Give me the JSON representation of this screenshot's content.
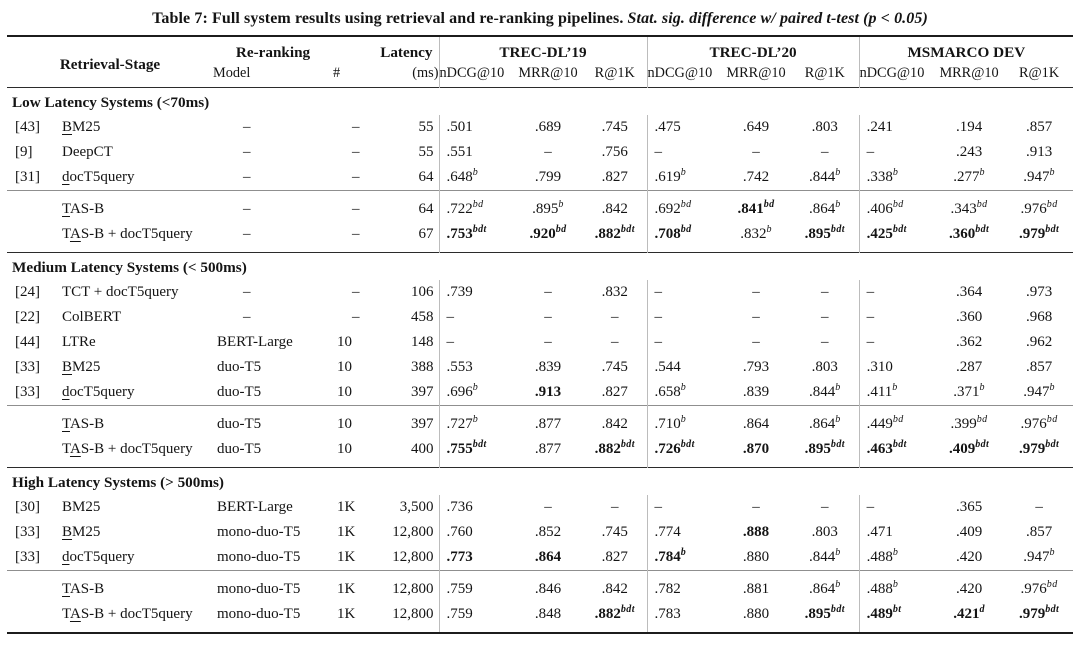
{
  "title": {
    "prefix": "Table 7: Full system results using retrieval and re-ranking pipelines. ",
    "emphasis": "Stat. sig. difference w/ paired t-test (p < 0.05)"
  },
  "colors": {
    "background": "#ffffff",
    "text": "#141414",
    "rule_dark": "#1c1c1c",
    "rule_mid": "#8f8f8f",
    "divider_gray": "#bcbcbc"
  },
  "header": {
    "retrieval_stage": "Retrieval-Stage",
    "reranking": "Re-ranking",
    "model": "Model",
    "count": "#",
    "latency": "Latency",
    "latency_unit": "(ms)",
    "groups": [
      {
        "label": "TREC-DL’19",
        "metrics": [
          "nDCG@10",
          "MRR@10",
          "R@1K"
        ]
      },
      {
        "label": "TREC-DL’20",
        "metrics": [
          "nDCG@10",
          "MRR@10",
          "R@1K"
        ]
      },
      {
        "label": "MSMARCO DEV",
        "metrics": [
          "nDCG@10",
          "MRR@10",
          "R@1K"
        ]
      }
    ]
  },
  "value_format_note": "cell strings: leading * = bold, ^xyz = italic superscript letters, – = no result",
  "sections": [
    {
      "label": "Low Latency Systems (<70ms)",
      "rows": [
        {
          "ref": "[43]",
          "name": [
            "",
            "B",
            "M25"
          ],
          "model": "–",
          "n": "–",
          "lat": "55",
          "cells": [
            ".501",
            ".689",
            ".745",
            ".475",
            ".649",
            ".803",
            ".241",
            ".194",
            ".857"
          ]
        },
        {
          "ref": "[9]",
          "name": [
            "DeepCT",
            "",
            ""
          ],
          "model": "–",
          "n": "–",
          "lat": "55",
          "cells": [
            ".551",
            "–",
            ".756",
            "–",
            "–",
            "–",
            "–",
            ".243",
            ".913"
          ]
        },
        {
          "ref": "[31]",
          "name": [
            "",
            "d",
            "ocT5query"
          ],
          "model": "–",
          "n": "–",
          "lat": "64",
          "cells": [
            ".648^b",
            ".799",
            ".827",
            ".619^b",
            ".742",
            ".844^b",
            ".338^b",
            ".277^b",
            ".947^b"
          ]
        }
      ],
      "sub_rows": [
        {
          "ref": "",
          "name": [
            "",
            "T",
            "AS-B"
          ],
          "model": "–",
          "n": "–",
          "lat": "64",
          "cells": [
            ".722^bd",
            ".895^b",
            ".842",
            ".692^bd",
            "*.841^bd",
            ".864^b",
            ".406^bd",
            ".343^bd",
            ".976^bd"
          ]
        },
        {
          "ref": "",
          "name": [
            "T",
            "A",
            "S-B + docT5query"
          ],
          "model": "–",
          "n": "–",
          "lat": "67",
          "cells": [
            "*.753^bdt",
            "*.920^bd",
            "*.882^bdt",
            "*.708^bd",
            ".832^b",
            "*.895^bdt",
            "*.425^bdt",
            "*.360^bdt",
            "*.979^bdt"
          ]
        }
      ]
    },
    {
      "label": "Medium Latency Systems (< 500ms)",
      "rows": [
        {
          "ref": "[24]",
          "name": [
            "TCT + docT5query",
            "",
            ""
          ],
          "model": "–",
          "n": "–",
          "lat": "106",
          "cells": [
            ".739",
            "–",
            ".832",
            "–",
            "–",
            "–",
            "–",
            ".364",
            ".973"
          ]
        },
        {
          "ref": "[22]",
          "name": [
            "ColBERT",
            "",
            ""
          ],
          "model": "–",
          "n": "–",
          "lat": "458",
          "cells": [
            "–",
            "–",
            "–",
            "–",
            "–",
            "–",
            "–",
            ".360",
            ".968"
          ]
        },
        {
          "ref": "[44]",
          "name": [
            "LTRe",
            "",
            ""
          ],
          "model": "BERT-Large",
          "n": "10",
          "lat": "148",
          "cells": [
            "–",
            "–",
            "–",
            "–",
            "–",
            "–",
            "–",
            ".362",
            ".962"
          ]
        },
        {
          "ref": "[33]",
          "name": [
            "",
            "B",
            "M25"
          ],
          "model": "duo-T5",
          "n": "10",
          "lat": "388",
          "cells": [
            ".553",
            ".839",
            ".745",
            ".544",
            ".793",
            ".803",
            ".310",
            ".287",
            ".857"
          ]
        },
        {
          "ref": "[33]",
          "name": [
            "",
            "d",
            "ocT5query"
          ],
          "model": "duo-T5",
          "n": "10",
          "lat": "397",
          "cells": [
            ".696^b",
            "*.913",
            ".827",
            ".658^b",
            ".839",
            ".844^b",
            ".411^b",
            ".371^b",
            ".947^b"
          ]
        }
      ],
      "sub_rows": [
        {
          "ref": "",
          "name": [
            "",
            "T",
            "AS-B"
          ],
          "model": "duo-T5",
          "n": "10",
          "lat": "397",
          "cells": [
            ".727^b",
            ".877",
            ".842",
            ".710^b",
            ".864",
            ".864^b",
            ".449^bd",
            ".399^bd",
            ".976^bd"
          ]
        },
        {
          "ref": "",
          "name": [
            "T",
            "A",
            "S-B + docT5query"
          ],
          "model": "duo-T5",
          "n": "10",
          "lat": "400",
          "cells": [
            "*.755^bdt",
            ".877",
            "*.882^bdt",
            "*.726^bdt",
            "*.870",
            "*.895^bdt",
            "*.463^bdt",
            "*.409^bdt",
            "*.979^bdt"
          ]
        }
      ]
    },
    {
      "label": "High Latency Systems (> 500ms)",
      "rows": [
        {
          "ref": "[30]",
          "name": [
            "BM25",
            "",
            ""
          ],
          "model": "BERT-Large",
          "n": "1K",
          "lat": "3,500",
          "cells": [
            ".736",
            "–",
            "–",
            "–",
            "–",
            "–",
            "–",
            ".365",
            "–"
          ]
        },
        {
          "ref": "[33]",
          "name": [
            "",
            "B",
            "M25"
          ],
          "model": "mono-duo-T5",
          "n": "1K",
          "lat": "12,800",
          "cells": [
            ".760",
            ".852",
            ".745",
            ".774",
            "*.888",
            ".803",
            ".471",
            ".409",
            ".857"
          ]
        },
        {
          "ref": "[33]",
          "name": [
            "",
            "d",
            "ocT5query"
          ],
          "model": "mono-duo-T5",
          "n": "1K",
          "lat": "12,800",
          "cells": [
            "*.773",
            "*.864",
            ".827",
            "*.784^b",
            ".880",
            ".844^b",
            ".488^b",
            ".420",
            ".947^b"
          ]
        }
      ],
      "sub_rows": [
        {
          "ref": "",
          "name": [
            "",
            "T",
            "AS-B"
          ],
          "model": "mono-duo-T5",
          "n": "1K",
          "lat": "12,800",
          "cells": [
            ".759",
            ".846",
            ".842",
            ".782",
            ".881",
            ".864^b",
            ".488^b",
            ".420",
            ".976^bd"
          ]
        },
        {
          "ref": "",
          "name": [
            "T",
            "A",
            "S-B + docT5query"
          ],
          "model": "mono-duo-T5",
          "n": "1K",
          "lat": "12,800",
          "cells": [
            ".759",
            ".848",
            "*.882^bdt",
            ".783",
            ".880",
            "*.895^bdt",
            "*.489^bt",
            "*.421^d",
            "*.979^bdt"
          ]
        }
      ]
    }
  ]
}
